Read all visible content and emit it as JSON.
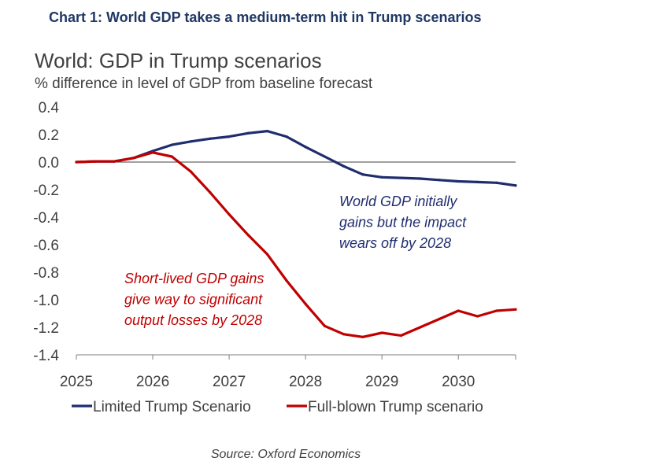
{
  "header": "Chart 1: World GDP takes a medium-term hit in Trump scenarios",
  "source": "Source: Oxford Economics",
  "colors": {
    "limited": "#1f2d6e",
    "full": "#c00000",
    "text": "#404040",
    "zero_line": "#404040"
  },
  "chart_data": {
    "type": "line",
    "title": "World: GDP in Trump scenarios",
    "subtitle": "% difference in level of GDP from baseline forecast",
    "ylim": [
      -1.4,
      0.4
    ],
    "yticks": [
      "0.4",
      "0.2",
      "0.0",
      "-0.2",
      "-0.4",
      "-0.6",
      "-0.8",
      "-1.0",
      "-1.2",
      "-1.4"
    ],
    "ytick_values": [
      0.4,
      0.2,
      0.0,
      -0.2,
      -0.4,
      -0.6,
      -0.8,
      -1.0,
      -1.2,
      -1.4
    ],
    "xlim": [
      2025,
      2030.75
    ],
    "xticks": [
      "2025",
      "2026",
      "2027",
      "2028",
      "2029",
      "2030"
    ],
    "xtick_values": [
      2025,
      2026,
      2027,
      2028,
      2029,
      2030
    ],
    "x": [
      2025.0,
      2025.25,
      2025.5,
      2025.75,
      2026.0,
      2026.25,
      2026.5,
      2026.75,
      2027.0,
      2027.25,
      2027.5,
      2027.75,
      2028.0,
      2028.25,
      2028.5,
      2028.75,
      2029.0,
      2029.25,
      2029.5,
      2029.75,
      2030.0,
      2030.25,
      2030.5,
      2030.75
    ],
    "series": [
      {
        "name": "Limited Trump Scenario",
        "color": "#1f2d6e",
        "values": [
          0.0,
          0.005,
          0.005,
          0.03,
          0.08,
          0.125,
          0.15,
          0.17,
          0.185,
          0.21,
          0.225,
          0.185,
          0.11,
          0.04,
          -0.03,
          -0.09,
          -0.11,
          -0.115,
          -0.12,
          -0.13,
          -0.14,
          -0.145,
          -0.15,
          -0.17
        ]
      },
      {
        "name": "Full-blown Trump scenario",
        "color": "#c00000",
        "values": [
          0.0,
          0.005,
          0.005,
          0.03,
          0.07,
          0.04,
          -0.07,
          -0.22,
          -0.38,
          -0.53,
          -0.67,
          -0.86,
          -1.03,
          -1.19,
          -1.25,
          -1.27,
          -1.24,
          -1.26,
          -1.2,
          -1.14,
          -1.08,
          -1.12,
          -1.08,
          -1.07
        ]
      }
    ],
    "annotations": [
      {
        "lines": [
          "World GDP initially",
          "gains but the impact",
          "wears off by 2028"
        ],
        "color": "#1f2d6e"
      },
      {
        "lines": [
          "Short-lived GDP gains",
          "give way to significant",
          "output losses by 2028"
        ],
        "color": "#c00000"
      }
    ],
    "legend_position": "bottom"
  }
}
